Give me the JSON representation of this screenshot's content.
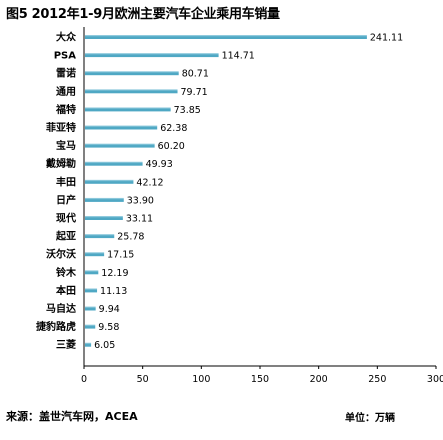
{
  "figure": {
    "title": "图5  2012年1-9月欧洲主要汽车企业乘用车销量",
    "source": "来源：盖世汽车网，ACEA",
    "unit": "单位：万辆"
  },
  "chart_data": {
    "type": "bar",
    "orientation": "horizontal",
    "title": "图5  2012年1-9月欧洲主要汽车企业乘用车销量",
    "categories": [
      "大众",
      "PSA",
      "雷诺",
      "通用",
      "福特",
      "菲亚特",
      "宝马",
      "戴姆勒",
      "丰田",
      "日产",
      "现代",
      "起亚",
      "沃尔沃",
      "铃木",
      "本田",
      "马自达",
      "捷豹路虎",
      "三菱"
    ],
    "values": [
      241.11,
      114.71,
      80.71,
      79.71,
      73.85,
      62.38,
      60.2,
      49.93,
      42.12,
      33.9,
      33.11,
      25.78,
      17.15,
      12.19,
      11.13,
      9.94,
      9.58,
      6.05
    ],
    "value_labels": [
      "241.11",
      "114.71",
      "80.71",
      "79.71",
      "73.85",
      "62.38",
      "60.20",
      "49.93",
      "42.12",
      "33.90",
      "33.11",
      "25.78",
      "17.15",
      "12.19",
      "11.13",
      "9.94",
      "9.58",
      "6.05"
    ],
    "xlim": [
      0,
      300
    ],
    "xticks": [
      0,
      50,
      100,
      150,
      200,
      250,
      300
    ],
    "grid": false,
    "legend": "none",
    "bar_color": "#4FA8C4",
    "bar_highlight": "#A9D7E6"
  }
}
